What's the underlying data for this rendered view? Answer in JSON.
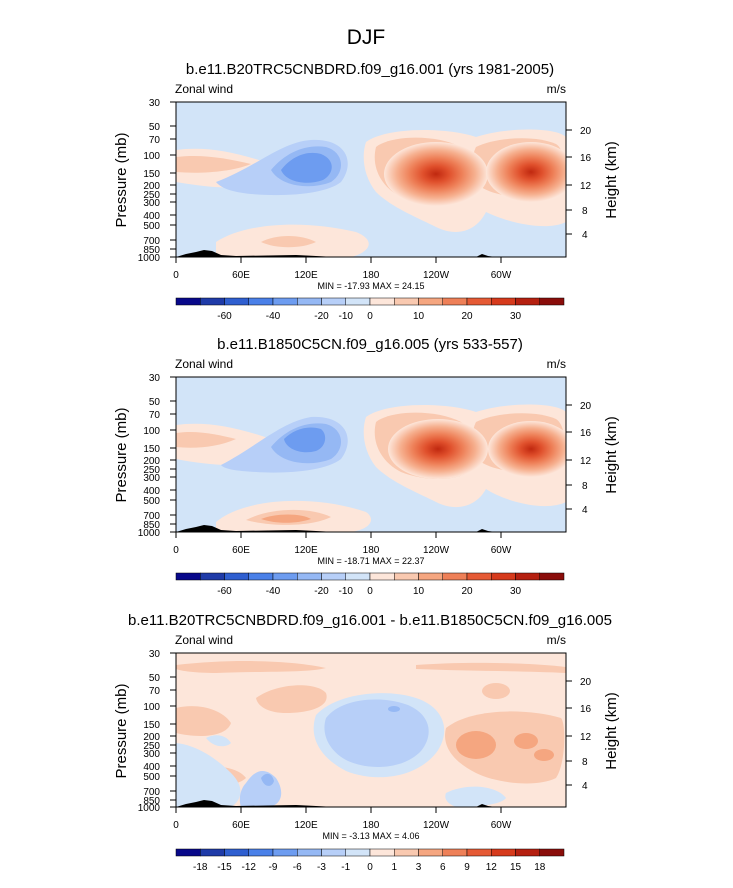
{
  "figure": {
    "title": "DJF"
  },
  "chart_data": [
    {
      "type": "heatmap",
      "title": "b.e11.B20TRC5CNBDRD.f09_g16.001 (yrs 1981-2005)",
      "left_label": "Zonal wind",
      "right_label": "m/s",
      "xlabel": "",
      "ylabel": "Pressure (mb)",
      "ylabel_right": "Height (km)",
      "x_ticks": [
        "0",
        "60E",
        "120E",
        "180",
        "120W",
        "60W"
      ],
      "y_ticks": [
        "30",
        "50",
        "70",
        "100",
        "150",
        "200",
        "250",
        "300",
        "400",
        "500",
        "700",
        "850",
        "1000"
      ],
      "height_ticks": [
        "4",
        "8",
        "12",
        "16",
        "20"
      ],
      "stats": "MIN = -17.93  MAX = 24.15",
      "colorbar_labels": [
        "-60",
        "-40",
        "-20",
        "-10",
        "0",
        "10",
        "20",
        "30"
      ],
      "colors": [
        "#08088a",
        "#1f3ba8",
        "#2f5fd0",
        "#4a80e8",
        "#6d9cf0",
        "#95b8f4",
        "#b7cff8",
        "#d2e4f8",
        "#fde6da",
        "#f9c9b0",
        "#f5a680",
        "#ee8058",
        "#e55a35",
        "#d63a1c",
        "#b52010",
        "#8a0d0a"
      ],
      "min": -17.93,
      "max": 24.15
    },
    {
      "type": "heatmap",
      "title": "b.e11.B1850C5CN.f09_g16.005 (yrs 533-557)",
      "left_label": "Zonal wind",
      "right_label": "m/s",
      "xlabel": "",
      "ylabel": "Pressure (mb)",
      "ylabel_right": "Height (km)",
      "x_ticks": [
        "0",
        "60E",
        "120E",
        "180",
        "120W",
        "60W"
      ],
      "y_ticks": [
        "30",
        "50",
        "70",
        "100",
        "150",
        "200",
        "250",
        "300",
        "400",
        "500",
        "700",
        "850",
        "1000"
      ],
      "height_ticks": [
        "4",
        "8",
        "12",
        "16",
        "20"
      ],
      "stats": "MIN = -18.71  MAX = 22.37",
      "colorbar_labels": [
        "-60",
        "-40",
        "-20",
        "-10",
        "0",
        "10",
        "20",
        "30"
      ],
      "colors": [
        "#08088a",
        "#1f3ba8",
        "#2f5fd0",
        "#4a80e8",
        "#6d9cf0",
        "#95b8f4",
        "#b7cff8",
        "#d2e4f8",
        "#fde6da",
        "#f9c9b0",
        "#f5a680",
        "#ee8058",
        "#e55a35",
        "#d63a1c",
        "#b52010",
        "#8a0d0a"
      ],
      "min": -18.71,
      "max": 22.37
    },
    {
      "type": "heatmap",
      "title": "b.e11.B20TRC5CNBDRD.f09_g16.001 - b.e11.B1850C5CN.f09_g16.005",
      "left_label": "Zonal wind",
      "right_label": "m/s",
      "xlabel": "",
      "ylabel": "Pressure (mb)",
      "ylabel_right": "Height (km)",
      "x_ticks": [
        "0",
        "60E",
        "120E",
        "180",
        "120W",
        "60W"
      ],
      "y_ticks": [
        "30",
        "50",
        "70",
        "100",
        "150",
        "200",
        "250",
        "300",
        "400",
        "500",
        "700",
        "850",
        "1000"
      ],
      "height_ticks": [
        "4",
        "8",
        "12",
        "16",
        "20"
      ],
      "stats": "MIN = -3.13  MAX = 4.06",
      "colorbar_labels": [
        "-18",
        "-15",
        "-12",
        "-9",
        "-6",
        "-3",
        "-1",
        "0",
        "1",
        "3",
        "6",
        "9",
        "12",
        "15",
        "18"
      ],
      "colors": [
        "#08088a",
        "#1f3ba8",
        "#2f5fd0",
        "#4a80e8",
        "#6d9cf0",
        "#95b8f4",
        "#b7cff8",
        "#d2e4f8",
        "#fde6da",
        "#f9c9b0",
        "#f5a680",
        "#ee8058",
        "#e55a35",
        "#d63a1c",
        "#b52010",
        "#8a0d0a"
      ],
      "min": -3.13,
      "max": 4.06
    }
  ]
}
